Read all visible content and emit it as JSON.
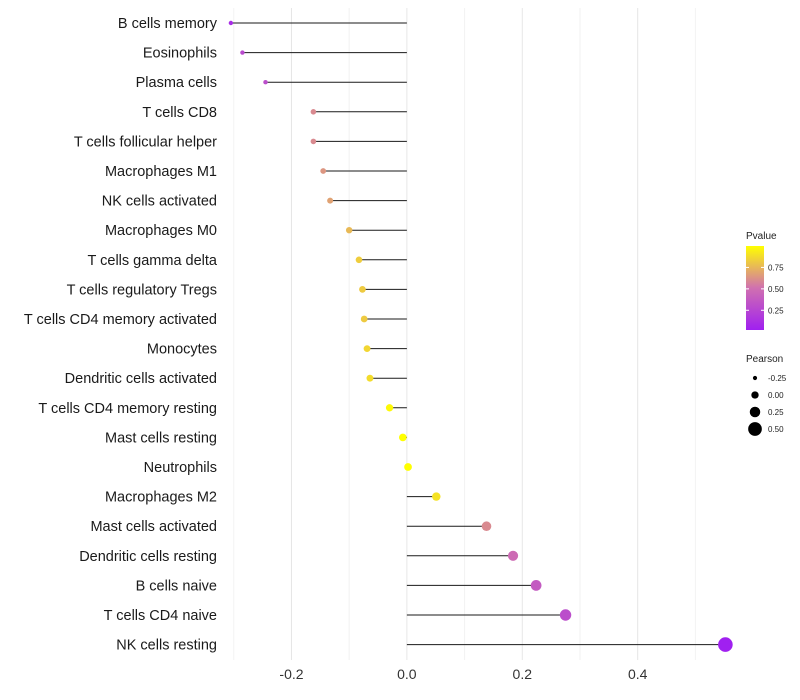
{
  "chart_data": {
    "type": "lollipop",
    "title": "",
    "xlabel": "",
    "ylabel": "",
    "xlim": [
      -0.31,
      0.56
    ],
    "x_ticks": [
      -0.2,
      0.0,
      0.2,
      0.4
    ],
    "x_tick_labels": [
      "-0.2",
      "0.0",
      "0.2",
      "0.4"
    ],
    "grid": true,
    "baseline": 0,
    "categories": [
      "B cells memory",
      "Eosinophils",
      "Plasma cells",
      "T cells CD8",
      "T cells follicular helper",
      "Macrophages M1",
      "NK cells activated",
      "Macrophages M0",
      "T cells gamma delta",
      "T cells regulatory  Tregs ",
      "T cells CD4 memory activated",
      "Monocytes",
      "Dendritic cells activated",
      "T cells CD4 memory resting",
      "Mast cells resting",
      "Neutrophils",
      "Macrophages M2",
      "Mast cells activated",
      "Dendritic cells resting",
      "B cells naive",
      "T cells CD4 naive",
      "NK cells resting"
    ],
    "values": [
      -0.305,
      -0.285,
      -0.245,
      -0.162,
      -0.162,
      -0.145,
      -0.133,
      -0.1,
      -0.083,
      -0.077,
      -0.074,
      -0.069,
      -0.064,
      -0.03,
      -0.007,
      0.002,
      0.051,
      0.138,
      0.184,
      0.224,
      0.275,
      0.552
    ],
    "pvalues": [
      0.1,
      0.28,
      0.3,
      0.6,
      0.6,
      0.64,
      0.68,
      0.76,
      0.83,
      0.82,
      0.82,
      0.86,
      0.88,
      0.98,
      1.0,
      1.0,
      0.9,
      0.6,
      0.48,
      0.38,
      0.3,
      0.02
    ],
    "legend_pvalue": {
      "title": "Pvalue",
      "range": [
        0.02,
        1.0
      ],
      "ticks": [
        0.25,
        0.5,
        0.75
      ],
      "tick_labels": [
        "0.25",
        "0.50",
        "0.75"
      ],
      "colors": [
        "#a020f0",
        "#d070b0",
        "#ffff00"
      ],
      "placement": "right"
    },
    "legend_pearson": {
      "title": "Pearson",
      "values": [
        -0.25,
        0.0,
        0.25,
        0.5
      ],
      "labels": [
        "-0.25",
        "0.00",
        "0.25",
        "0.50"
      ],
      "placement": "right"
    }
  }
}
